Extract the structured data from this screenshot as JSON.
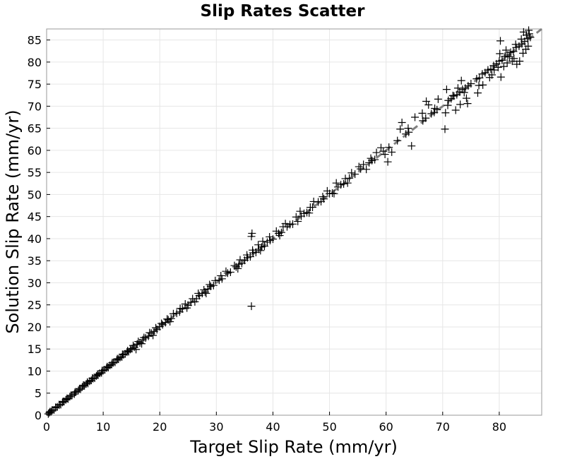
{
  "chart_data": {
    "type": "scatter",
    "title": "Slip Rates Scatter",
    "xlabel": "Target Slip Rate (mm/yr)",
    "ylabel": "Solution Slip Rate (mm/yr)",
    "xlim": [
      0,
      87.5
    ],
    "ylim": [
      0,
      87.5
    ],
    "xticks": [
      "0",
      "10",
      "20",
      "30",
      "40",
      "50",
      "60",
      "70",
      "80"
    ],
    "yticks": [
      "0",
      "5",
      "10",
      "15",
      "20",
      "25",
      "30",
      "35",
      "40",
      "45",
      "50",
      "55",
      "60",
      "65",
      "70",
      "75",
      "80",
      "85"
    ],
    "grid": true,
    "marker": "plus",
    "marker_color": "#000000",
    "reference_line": {
      "style": "dashed",
      "color": "#808080",
      "from": [
        0,
        0
      ],
      "to": [
        87.5,
        87.5
      ]
    },
    "series": [
      {
        "points": [
          [
            0.3,
            0.3
          ],
          [
            0.5,
            0.6
          ],
          [
            0.8,
            0.8
          ],
          [
            1.0,
            1.1
          ],
          [
            1.3,
            1.2
          ],
          [
            1.6,
            1.7
          ],
          [
            1.9,
            1.9
          ],
          [
            2.2,
            2.3
          ],
          [
            2.5,
            2.4
          ],
          [
            2.8,
            2.9
          ],
          [
            3.1,
            3.1
          ],
          [
            3.4,
            3.5
          ],
          [
            3.8,
            3.7
          ],
          [
            4.1,
            4.2
          ],
          [
            4.5,
            4.5
          ],
          [
            4.9,
            4.8
          ],
          [
            5.2,
            5.3
          ],
          [
            5.6,
            5.6
          ],
          [
            6.0,
            5.9
          ],
          [
            6.3,
            6.4
          ],
          [
            6.7,
            6.7
          ],
          [
            7.0,
            7.1
          ],
          [
            7.3,
            7.2
          ],
          [
            7.6,
            7.7
          ],
          [
            7.9,
            7.9
          ],
          [
            8.2,
            8.3
          ],
          [
            8.5,
            8.4
          ],
          [
            8.8,
            8.9
          ],
          [
            9.1,
            9.1
          ],
          [
            9.4,
            9.5
          ],
          [
            9.7,
            9.6
          ],
          [
            10.0,
            10.1
          ],
          [
            10.3,
            10.3
          ],
          [
            10.6,
            10.7
          ],
          [
            10.9,
            10.8
          ],
          [
            11.2,
            11.3
          ],
          [
            11.5,
            11.5
          ],
          [
            11.8,
            11.9
          ],
          [
            12.1,
            12.0
          ],
          [
            12.4,
            12.5
          ],
          [
            12.7,
            12.7
          ],
          [
            13.0,
            13.1
          ],
          [
            13.3,
            13.2
          ],
          [
            13.6,
            13.7
          ],
          [
            13.9,
            13.9
          ],
          [
            14.2,
            14.3
          ],
          [
            14.5,
            14.4
          ],
          [
            14.8,
            14.9
          ],
          [
            15.1,
            15.1
          ],
          [
            15.5,
            15.4
          ],
          [
            16.0,
            16.1
          ],
          [
            16.5,
            16.4
          ],
          [
            17.0,
            17.1
          ],
          [
            17.5,
            17.5
          ],
          [
            18.0,
            17.9
          ],
          [
            18.5,
            18.6
          ],
          [
            19.0,
            19.0
          ],
          [
            19.5,
            19.4
          ],
          [
            20.0,
            20.1
          ],
          [
            20.5,
            20.5
          ],
          [
            21.0,
            21.0
          ],
          [
            21.5,
            21.6
          ],
          [
            22.0,
            21.9
          ],
          [
            23.0,
            23.1
          ],
          [
            23.5,
            23.4
          ],
          [
            24.0,
            24.1
          ],
          [
            25.0,
            24.9
          ],
          [
            25.5,
            25.6
          ],
          [
            26.5,
            26.4
          ],
          [
            27.0,
            27.1
          ],
          [
            27.5,
            27.6
          ],
          [
            28.0,
            27.9
          ],
          [
            28.5,
            28.6
          ],
          [
            29.0,
            29.2
          ],
          [
            29.5,
            29.4
          ],
          [
            30.5,
            30.6
          ],
          [
            31.0,
            30.9
          ],
          [
            32.0,
            32.2
          ],
          [
            32.5,
            32.4
          ],
          [
            33.5,
            33.6
          ],
          [
            34.0,
            34.2
          ],
          [
            34.5,
            34.4
          ],
          [
            35.0,
            35.1
          ],
          [
            35.5,
            35.7
          ],
          [
            36.0,
            35.9
          ],
          [
            36.5,
            36.8
          ],
          [
            37.0,
            36.9
          ],
          [
            37.5,
            37.6
          ],
          [
            38.0,
            38.1
          ],
          [
            38.5,
            38.3
          ],
          [
            39.0,
            39.2
          ],
          [
            39.5,
            39.6
          ],
          [
            40.0,
            39.9
          ],
          [
            41.0,
            41.2
          ],
          [
            41.5,
            41.4
          ],
          [
            42.5,
            42.7
          ],
          [
            43.0,
            43.2
          ],
          [
            43.5,
            43.3
          ],
          [
            45.0,
            45.1
          ],
          [
            45.5,
            45.7
          ],
          [
            46.0,
            45.9
          ],
          [
            47.0,
            47.1
          ],
          [
            48.0,
            48.3
          ],
          [
            48.5,
            48.4
          ],
          [
            49.0,
            49.0
          ],
          [
            50.0,
            50.2
          ],
          [
            50.5,
            50.3
          ],
          [
            51.5,
            51.7
          ],
          [
            52.0,
            52.2
          ],
          [
            52.5,
            52.4
          ],
          [
            53.5,
            53.7
          ],
          [
            54.5,
            54.6
          ],
          [
            55.5,
            55.8
          ],
          [
            57.0,
            57.2
          ],
          [
            57.5,
            57.7
          ],
          [
            58.0,
            57.9
          ],
          [
            59.5,
            59.8
          ],
          [
            60.5,
            60.7
          ],
          [
            62.0,
            62.2
          ],
          [
            63.5,
            63.7
          ],
          [
            64.0,
            64.1
          ],
          [
            66.5,
            66.7
          ],
          [
            67.0,
            67.3
          ],
          [
            68.0,
            68.3
          ],
          [
            68.5,
            68.6
          ],
          [
            69.0,
            69.2
          ],
          [
            71.0,
            71.3
          ],
          [
            71.5,
            71.7
          ],
          [
            72.0,
            72.3
          ],
          [
            72.5,
            72.6
          ],
          [
            73.0,
            73.2
          ],
          [
            73.5,
            73.8
          ],
          [
            74.0,
            74.1
          ],
          [
            74.5,
            74.6
          ],
          [
            75.0,
            75.1
          ],
          [
            76.0,
            76.2
          ],
          [
            76.5,
            76.4
          ],
          [
            77.0,
            77.3
          ],
          [
            77.5,
            77.6
          ],
          [
            78.0,
            78.2
          ],
          [
            78.5,
            78.4
          ],
          [
            79.0,
            79.2
          ],
          [
            79.5,
            79.6
          ],
          [
            80.0,
            80.2
          ],
          [
            80.5,
            80.4
          ],
          [
            81.0,
            81.3
          ],
          [
            81.5,
            81.6
          ],
          [
            82.0,
            82.2
          ],
          [
            82.5,
            82.4
          ],
          [
            83.0,
            83.3
          ],
          [
            83.5,
            83.6
          ],
          [
            84.0,
            84.1
          ],
          [
            84.5,
            84.7
          ],
          [
            85.0,
            85.3
          ],
          [
            85.5,
            85.6
          ],
          [
            36.2,
            40.5
          ],
          [
            36.3,
            41.2
          ],
          [
            36.2,
            24.7
          ],
          [
            60.3,
            57.4
          ],
          [
            61.0,
            59.6
          ],
          [
            64.5,
            61.0
          ],
          [
            70.4,
            64.8
          ],
          [
            70.5,
            68.5
          ],
          [
            70.9,
            70.2
          ],
          [
            72.3,
            69.1
          ],
          [
            73.1,
            70.4
          ],
          [
            74.2,
            71.8
          ],
          [
            74.4,
            70.6
          ],
          [
            73.8,
            73.1
          ],
          [
            76.2,
            73.0
          ],
          [
            76.4,
            74.7
          ],
          [
            77.1,
            74.8
          ],
          [
            78.3,
            76.5
          ],
          [
            78.7,
            77.1
          ],
          [
            79.1,
            78.2
          ],
          [
            79.8,
            78.8
          ],
          [
            80.3,
            76.6
          ],
          [
            80.8,
            79.0
          ],
          [
            81.4,
            79.8
          ],
          [
            81.8,
            81.2
          ],
          [
            82.3,
            80.2
          ],
          [
            82.6,
            80.8
          ],
          [
            83.1,
            79.5
          ],
          [
            83.6,
            80.2
          ],
          [
            84.2,
            82.0
          ],
          [
            84.7,
            82.9
          ],
          [
            85.1,
            83.6
          ],
          [
            80.1,
            81.9
          ],
          [
            81.2,
            82.7
          ],
          [
            82.9,
            84.0
          ],
          [
            83.9,
            85.2
          ],
          [
            84.8,
            86.1
          ],
          [
            85.3,
            86.4
          ],
          [
            84.3,
            86.8
          ],
          [
            85.2,
            87.2
          ],
          [
            80.2,
            84.8
          ],
          [
            73.3,
            75.8
          ],
          [
            72.7,
            74.1
          ],
          [
            71.8,
            72.4
          ],
          [
            70.7,
            73.8
          ],
          [
            69.2,
            71.6
          ],
          [
            68.6,
            69.5
          ],
          [
            67.5,
            70.3
          ],
          [
            67.1,
            71.1
          ],
          [
            66.4,
            68.4
          ],
          [
            65.1,
            67.5
          ],
          [
            62.5,
            64.8
          ],
          [
            62.8,
            66.3
          ],
          [
            63.9,
            65.0
          ],
          [
            59.1,
            60.6
          ],
          [
            58.3,
            59.5
          ],
          [
            57.3,
            58.2
          ],
          [
            56.0,
            56.8
          ],
          [
            55.2,
            56.3
          ],
          [
            53.9,
            54.9
          ],
          [
            52.8,
            53.6
          ],
          [
            51.2,
            52.6
          ],
          [
            49.6,
            50.8
          ],
          [
            48.8,
            49.5
          ],
          [
            47.2,
            48.4
          ],
          [
            46.6,
            47.1
          ],
          [
            44.8,
            46.2
          ],
          [
            44.1,
            44.9
          ],
          [
            42.2,
            43.4
          ],
          [
            41.8,
            42.7
          ],
          [
            40.6,
            41.7
          ],
          [
            39.4,
            40.4
          ],
          [
            38.2,
            39.4
          ],
          [
            37.4,
            38.6
          ],
          [
            36.4,
            37.4
          ],
          [
            35.4,
            36.3
          ],
          [
            34.2,
            35.2
          ],
          [
            33.2,
            33.9
          ],
          [
            31.7,
            32.6
          ],
          [
            30.8,
            31.6
          ],
          [
            29.8,
            30.5
          ],
          [
            28.8,
            29.6
          ],
          [
            27.8,
            28.4
          ],
          [
            26.8,
            27.6
          ],
          [
            25.8,
            26.4
          ],
          [
            24.5,
            25.2
          ],
          [
            23.6,
            24.2
          ],
          [
            22.4,
            23.0
          ],
          [
            21.3,
            21.8
          ],
          [
            20.3,
            20.8
          ],
          [
            19.3,
            19.8
          ],
          [
            18.2,
            18.7
          ],
          [
            17.2,
            17.6
          ],
          [
            16.2,
            16.7
          ],
          [
            15.3,
            15.8
          ],
          [
            14.3,
            14.6
          ],
          [
            13.4,
            13.8
          ],
          [
            12.5,
            12.8
          ],
          [
            11.6,
            11.9
          ],
          [
            10.7,
            11.0
          ],
          [
            9.8,
            10.1
          ],
          [
            9.0,
            9.3
          ],
          [
            8.1,
            8.4
          ],
          [
            7.2,
            7.5
          ],
          [
            6.5,
            6.8
          ],
          [
            5.8,
            6.0
          ],
          [
            5.0,
            5.2
          ],
          [
            4.3,
            4.5
          ],
          [
            3.6,
            3.8
          ],
          [
            2.9,
            3.1
          ],
          [
            2.2,
            2.4
          ],
          [
            1.6,
            1.8
          ],
          [
            1.0,
            1.2
          ],
          [
            0.6,
            0.8
          ],
          [
            15.8,
            14.9
          ],
          [
            16.8,
            16.2
          ],
          [
            18.8,
            18.1
          ],
          [
            21.8,
            21.2
          ],
          [
            24.8,
            24.3
          ],
          [
            26.2,
            25.7
          ],
          [
            28.2,
            27.6
          ],
          [
            33.8,
            33.2
          ],
          [
            37.8,
            37.3
          ],
          [
            41.2,
            40.7
          ],
          [
            44.4,
            43.9
          ],
          [
            46.4,
            45.8
          ],
          [
            50.8,
            50.2
          ],
          [
            53.2,
            52.6
          ],
          [
            56.5,
            55.7
          ],
          [
            59.8,
            59.1
          ]
        ]
      }
    ]
  }
}
